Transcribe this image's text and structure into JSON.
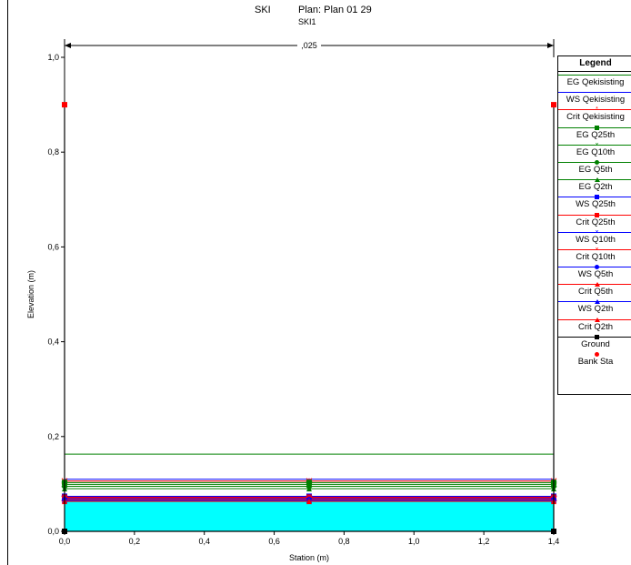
{
  "window": {
    "title": "SKI",
    "plan": "Plan: Plan 01    29",
    "subtitle": "SKI1"
  },
  "colors": {
    "water": "#00ffff",
    "eg": "#008000",
    "ws": "#0000ff",
    "crit": "#ff0000",
    "ground": "#000000",
    "bank": "#ff0000"
  },
  "chart_data": {
    "type": "line",
    "title": "SKI",
    "plan_label": "Plan: Plan 01    29",
    "subtitle": "SKI1",
    "xlabel": "Station (m)",
    "ylabel": "Elevation (m)",
    "xlim": [
      0,
      1.4
    ],
    "ylim": [
      0,
      1.0
    ],
    "x_ticks": [
      "0,0",
      "0,2",
      "0,4",
      "0,6",
      "0,8",
      "1,0",
      "1,2",
      "1,4"
    ],
    "y_ticks": [
      "0,0",
      "0,2",
      "0,4",
      "0,6",
      "0,8",
      "1,0"
    ],
    "manning_label": ",025",
    "ground": {
      "x": [
        0,
        0,
        1.4,
        1.4
      ],
      "y": [
        0.9,
        0,
        0,
        0.9
      ]
    },
    "bank_stations": [
      {
        "x": 0,
        "y": 0.9
      },
      {
        "x": 1.4,
        "y": 0.9
      }
    ],
    "water_surface_elevation": 0.065,
    "series": [
      {
        "name": "EG Qekisisting",
        "color": "#008000",
        "marker": "none",
        "y": 0.163
      },
      {
        "name": "WS Qekisisting",
        "color": "#0000ff",
        "marker": "none",
        "y": 0.11
      },
      {
        "name": "Crit Qekisisting",
        "color": "#ff0000",
        "marker": "star",
        "y": 0.106
      },
      {
        "name": "EG Q25th",
        "color": "#008000",
        "marker": "square",
        "y": 0.103
      },
      {
        "name": "EG Q10th",
        "color": "#008000",
        "marker": "x",
        "y": 0.099
      },
      {
        "name": "EG Q5th",
        "color": "#008000",
        "marker": "circle",
        "y": 0.095
      },
      {
        "name": "EG Q2th",
        "color": "#008000",
        "marker": "triangle",
        "y": 0.09
      },
      {
        "name": "WS Q25th",
        "color": "#0000ff",
        "marker": "square",
        "y": 0.074
      },
      {
        "name": "Crit Q25th",
        "color": "#ff0000",
        "marker": "square",
        "y": 0.072
      },
      {
        "name": "WS Q10th",
        "color": "#0000ff",
        "marker": "x",
        "y": 0.07
      },
      {
        "name": "Crit Q10th",
        "color": "#ff0000",
        "marker": "x",
        "y": 0.069
      },
      {
        "name": "WS Q5th",
        "color": "#0000ff",
        "marker": "circle",
        "y": 0.067
      },
      {
        "name": "Crit Q5th",
        "color": "#ff0000",
        "marker": "triangle",
        "y": 0.066
      },
      {
        "name": "WS Q2th",
        "color": "#0000ff",
        "marker": "triangle",
        "y": 0.065
      },
      {
        "name": "Crit Q2th",
        "color": "#ff0000",
        "marker": "triangle",
        "y": 0.063
      }
    ],
    "legend": {
      "title": "Legend",
      "position": "right",
      "items": [
        {
          "label": "EG Qekisisting",
          "color": "#008000",
          "marker": "none"
        },
        {
          "label": "WS Qekisisting",
          "color": "#0000ff",
          "marker": "none"
        },
        {
          "label": "Crit Qekisisting",
          "color": "#ff0000",
          "marker": "star"
        },
        {
          "label": "EG Q25th",
          "color": "#008000",
          "marker": "square"
        },
        {
          "label": "EG Q10th",
          "color": "#008000",
          "marker": "x"
        },
        {
          "label": "EG Q5th",
          "color": "#008000",
          "marker": "circle"
        },
        {
          "label": "EG Q2th",
          "color": "#008000",
          "marker": "triangle"
        },
        {
          "label": "WS Q25th",
          "color": "#0000ff",
          "marker": "square"
        },
        {
          "label": "Crit Q25th",
          "color": "#ff0000",
          "marker": "square"
        },
        {
          "label": "WS Q10th",
          "color": "#0000ff",
          "marker": "x"
        },
        {
          "label": "Crit Q10th",
          "color": "#ff0000",
          "marker": "x"
        },
        {
          "label": "WS Q5th",
          "color": "#0000ff",
          "marker": "circle"
        },
        {
          "label": "Crit Q5th",
          "color": "#ff0000",
          "marker": "triangle"
        },
        {
          "label": "WS Q2th",
          "color": "#0000ff",
          "marker": "triangle"
        },
        {
          "label": "Crit Q2th",
          "color": "#ff0000",
          "marker": "triangle"
        },
        {
          "label": "Ground",
          "color": "#000000",
          "marker": "square"
        },
        {
          "label": "Bank Sta",
          "color": "#ff0000",
          "marker": "dot"
        }
      ]
    }
  }
}
